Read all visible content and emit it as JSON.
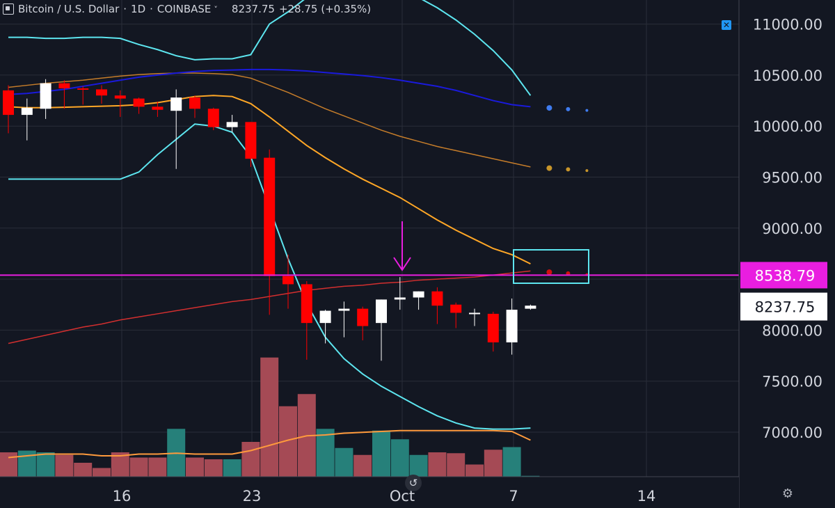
{
  "header": {
    "symbol": "Bitcoin / U.S. Dollar",
    "interval": "1D",
    "exchange": "COINBASE",
    "separator": "·",
    "last": "8237.75",
    "change": "+28.75 (+0.35%)"
  },
  "price_axis": {
    "ticks": [
      "11000.00",
      "10500.00",
      "10000.00",
      "9500.00",
      "9000.00",
      "8000.00",
      "7500.00",
      "7000.00"
    ],
    "tick_values": [
      11000,
      10500,
      10000,
      9500,
      9000,
      8000,
      7500,
      7000
    ],
    "horizontal_line_label": "8538.79",
    "last_price_label": "8237.75"
  },
  "time_axis": {
    "ticks": [
      "16",
      "23",
      "Oct",
      "7",
      "14"
    ]
  },
  "colors": {
    "background": "#131722",
    "bull_candle": "#ffffff",
    "bear_candle": "#ff0000",
    "bollinger": "#5de6f0",
    "ma_orange": "#ffa726",
    "ma_brown": "#c67d2a",
    "ma_blue": "#1a1adc",
    "ma_red": "#d32f2f",
    "horizontal_line": "#e91ee0",
    "arrow": "#e91ee0",
    "volume_bull": "#26807a",
    "volume_bear": "#a54a55",
    "volume_ma": "#ff9a3c"
  },
  "chart_data": {
    "type": "candlestick",
    "title": "Bitcoin / U.S. Dollar · 1D · COINBASE",
    "ylim": [
      6700,
      11300
    ],
    "candles": [
      {
        "o": 10350,
        "h": 10400,
        "l": 9930,
        "c": 10110
      },
      {
        "o": 10110,
        "h": 10270,
        "l": 9860,
        "c": 10180
      },
      {
        "o": 10170,
        "h": 10460,
        "l": 10070,
        "c": 10420
      },
      {
        "o": 10420,
        "h": 10450,
        "l": 10170,
        "c": 10370
      },
      {
        "o": 10370,
        "h": 10390,
        "l": 10210,
        "c": 10360
      },
      {
        "o": 10360,
        "h": 10400,
        "l": 10220,
        "c": 10300
      },
      {
        "o": 10300,
        "h": 10350,
        "l": 10090,
        "c": 10270
      },
      {
        "o": 10270,
        "h": 10280,
        "l": 10120,
        "c": 10190
      },
      {
        "o": 10190,
        "h": 10240,
        "l": 10090,
        "c": 10160
      },
      {
        "o": 10150,
        "h": 10360,
        "l": 9580,
        "c": 10280
      },
      {
        "o": 10280,
        "h": 10300,
        "l": 10080,
        "c": 10170
      },
      {
        "o": 10170,
        "h": 10180,
        "l": 9960,
        "c": 9990
      },
      {
        "o": 9990,
        "h": 10110,
        "l": 9940,
        "c": 10040
      },
      {
        "o": 10040,
        "h": 10040,
        "l": 9600,
        "c": 9680
      },
      {
        "o": 9690,
        "h": 9770,
        "l": 8150,
        "c": 8530
      },
      {
        "o": 8530,
        "h": 8740,
        "l": 8210,
        "c": 8450
      },
      {
        "o": 8450,
        "h": 8480,
        "l": 7710,
        "c": 8070
      },
      {
        "o": 8070,
        "h": 8200,
        "l": 7870,
        "c": 8190
      },
      {
        "o": 8190,
        "h": 8280,
        "l": 7930,
        "c": 8210
      },
      {
        "o": 8210,
        "h": 8230,
        "l": 7900,
        "c": 8040
      },
      {
        "o": 8070,
        "h": 8300,
        "l": 7700,
        "c": 8300
      },
      {
        "o": 8300,
        "h": 8520,
        "l": 8200,
        "c": 8320
      },
      {
        "o": 8320,
        "h": 8380,
        "l": 8200,
        "c": 8380
      },
      {
        "o": 8380,
        "h": 8420,
        "l": 8060,
        "c": 8240
      },
      {
        "o": 8250,
        "h": 8270,
        "l": 8020,
        "c": 8170
      },
      {
        "o": 8170,
        "h": 8210,
        "l": 8040,
        "c": 8170
      },
      {
        "o": 8160,
        "h": 8180,
        "l": 7790,
        "c": 7880
      },
      {
        "o": 7880,
        "h": 8310,
        "l": 7760,
        "c": 8200
      },
      {
        "o": 8210,
        "h": 8250,
        "l": 8200,
        "c": 8240
      }
    ],
    "volume": [
      {
        "v": 0.28,
        "bull": false
      },
      {
        "v": 0.3,
        "bull": true
      },
      {
        "v": 0.28,
        "bull": true
      },
      {
        "v": 0.25,
        "bull": false
      },
      {
        "v": 0.16,
        "bull": false
      },
      {
        "v": 0.1,
        "bull": false
      },
      {
        "v": 0.28,
        "bull": false
      },
      {
        "v": 0.22,
        "bull": false
      },
      {
        "v": 0.22,
        "bull": false
      },
      {
        "v": 0.55,
        "bull": true
      },
      {
        "v": 0.22,
        "bull": false
      },
      {
        "v": 0.2,
        "bull": false
      },
      {
        "v": 0.2,
        "bull": true
      },
      {
        "v": 0.4,
        "bull": false
      },
      {
        "v": 1.37,
        "bull": false
      },
      {
        "v": 0.81,
        "bull": false
      },
      {
        "v": 0.95,
        "bull": false
      },
      {
        "v": 0.55,
        "bull": true
      },
      {
        "v": 0.33,
        "bull": true
      },
      {
        "v": 0.25,
        "bull": false
      },
      {
        "v": 0.53,
        "bull": true
      },
      {
        "v": 0.43,
        "bull": true
      },
      {
        "v": 0.25,
        "bull": true
      },
      {
        "v": 0.28,
        "bull": false
      },
      {
        "v": 0.27,
        "bull": false
      },
      {
        "v": 0.14,
        "bull": false
      },
      {
        "v": 0.31,
        "bull": false
      },
      {
        "v": 0.34,
        "bull": true
      },
      {
        "v": 0.01,
        "bull": true
      }
    ],
    "bollinger_upper": [
      10870,
      10870,
      10860,
      10860,
      10870,
      10870,
      10860,
      10800,
      10750,
      10690,
      10650,
      10660,
      10660,
      10700,
      11000,
      11120,
      11260,
      11300,
      11300,
      11300,
      11300,
      11300,
      11260,
      11160,
      11040,
      10900,
      10740,
      10550,
      10300
    ],
    "bollinger_lower": [
      9480,
      9480,
      9480,
      9480,
      9480,
      9480,
      9480,
      9550,
      9720,
      9870,
      10020,
      10000,
      9940,
      9700,
      9200,
      8700,
      8260,
      7930,
      7720,
      7570,
      7450,
      7350,
      7250,
      7160,
      7090,
      7040,
      7030,
      7030,
      7040
    ],
    "ma_orange": [
      10190,
      10180,
      10180,
      10185,
      10190,
      10195,
      10200,
      10210,
      10230,
      10260,
      10290,
      10300,
      10290,
      10220,
      10090,
      9950,
      9810,
      9690,
      9580,
      9480,
      9390,
      9300,
      9190,
      9080,
      8980,
      8890,
      8800,
      8740,
      8650
    ],
    "ma_brown": [
      10380,
      10400,
      10420,
      10435,
      10450,
      10470,
      10490,
      10505,
      10515,
      10520,
      10520,
      10515,
      10505,
      10470,
      10400,
      10330,
      10250,
      10170,
      10100,
      10030,
      9960,
      9900,
      9850,
      9800,
      9760,
      9720,
      9680,
      9640,
      9600
    ],
    "ma_blue": [
      10310,
      10320,
      10340,
      10360,
      10390,
      10420,
      10450,
      10480,
      10500,
      10520,
      10535,
      10545,
      10550,
      10555,
      10555,
      10550,
      10540,
      10525,
      10510,
      10495,
      10475,
      10450,
      10420,
      10390,
      10350,
      10300,
      10250,
      10210,
      10190
    ],
    "ma_red": [
      7870,
      7910,
      7950,
      7990,
      8030,
      8060,
      8100,
      8130,
      8160,
      8190,
      8220,
      8250,
      8280,
      8300,
      8330,
      8360,
      8390,
      8410,
      8430,
      8440,
      8460,
      8470,
      8490,
      8500,
      8510,
      8520,
      8540,
      8560,
      8580
    ],
    "volume_ma": [
      0.22,
      0.24,
      0.26,
      0.26,
      0.26,
      0.24,
      0.24,
      0.26,
      0.26,
      0.27,
      0.26,
      0.26,
      0.26,
      0.3,
      0.36,
      0.42,
      0.47,
      0.48,
      0.5,
      0.51,
      0.52,
      0.53,
      0.53,
      0.53,
      0.53,
      0.53,
      0.53,
      0.52,
      0.42
    ],
    "horizontal_line": 8538.79,
    "last_price": 8237.75
  }
}
